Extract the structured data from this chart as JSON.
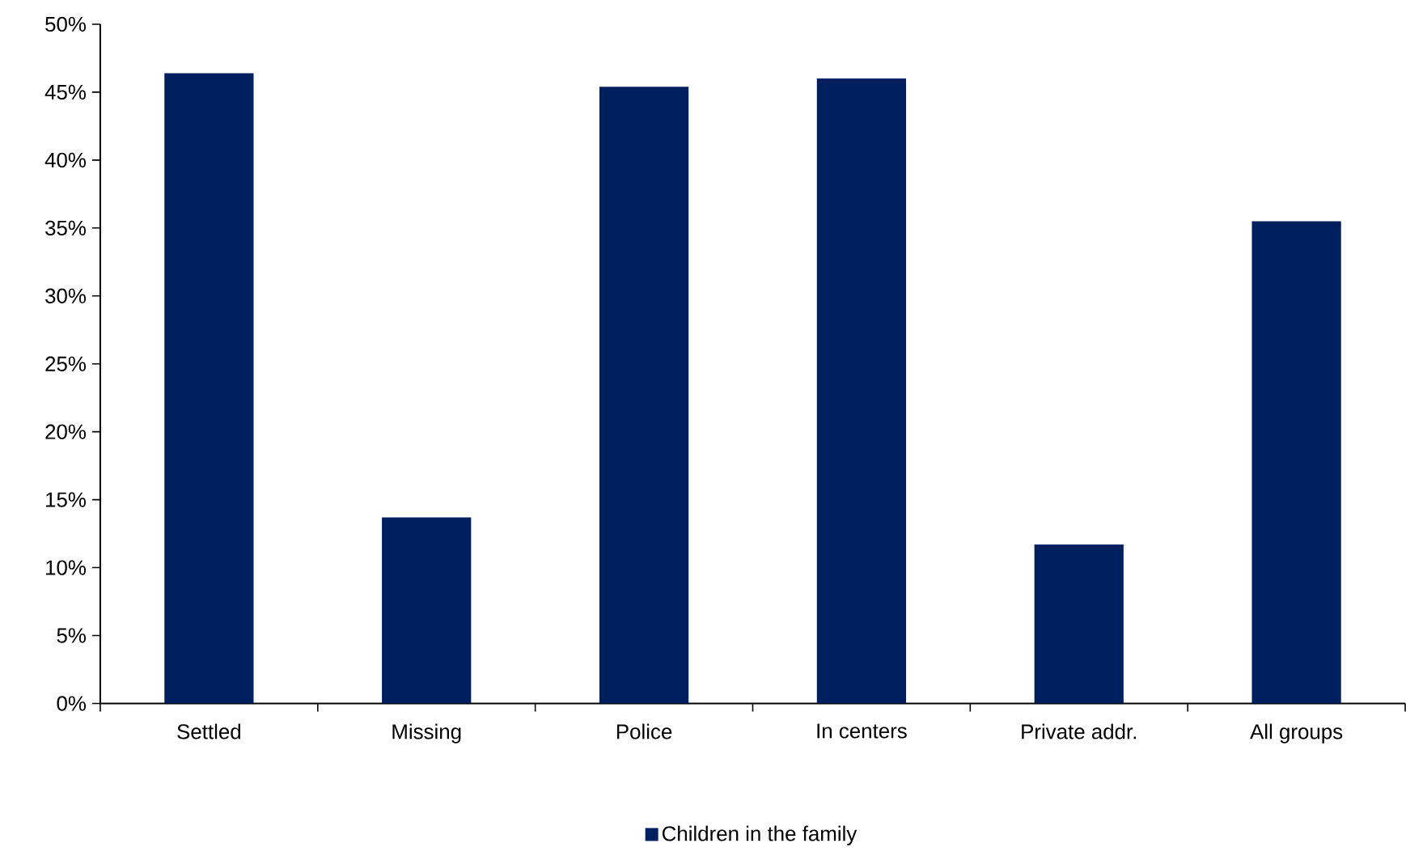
{
  "chart_data": {
    "type": "bar",
    "categories": [
      "Settled",
      "Missing",
      "Police",
      "In centers",
      "Private addr.",
      "All groups"
    ],
    "series": [
      {
        "name": "Children in the family",
        "color": "#001f5f",
        "values": [
          46.4,
          13.7,
          45.4,
          46.0,
          11.7,
          35.5
        ]
      }
    ],
    "ylim": [
      0,
      50
    ],
    "yticks": [
      {
        "value": 0,
        "label": "0%"
      },
      {
        "value": 5,
        "label": "5%"
      },
      {
        "value": 10,
        "label": "10%"
      },
      {
        "value": 15,
        "label": "15%"
      },
      {
        "value": 20,
        "label": "20%"
      },
      {
        "value": 25,
        "label": "25%"
      },
      {
        "value": 30,
        "label": "30%"
      },
      {
        "value": 35,
        "label": "35%"
      },
      {
        "value": 40,
        "label": "40%"
      },
      {
        "value": 45,
        "label": "45%"
      },
      {
        "value": 50,
        "label": "50%"
      }
    ],
    "grid": false,
    "legend": "bottom"
  }
}
